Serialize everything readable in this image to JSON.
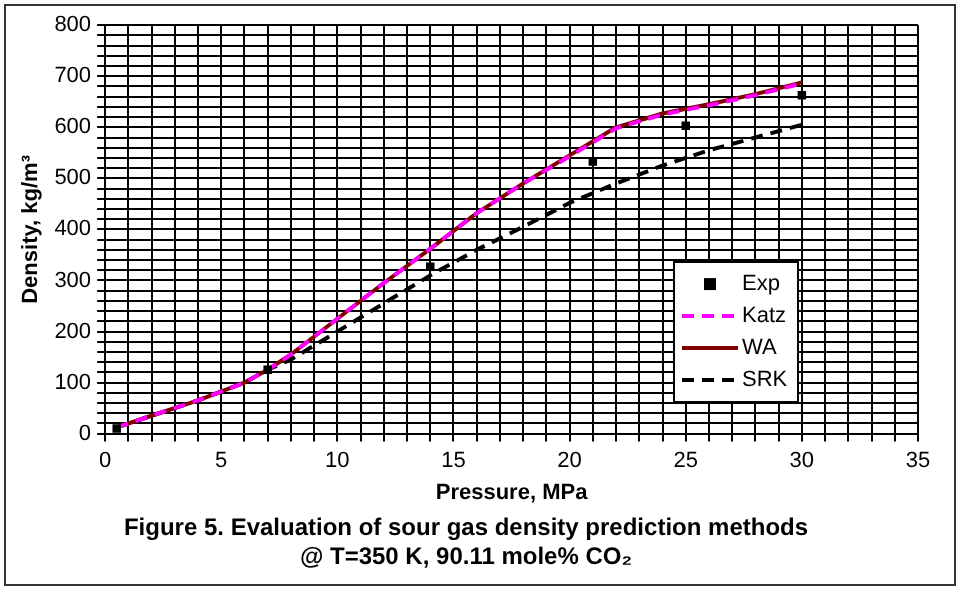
{
  "chart_data": {
    "type": "line",
    "title": "Figure 5. Evaluation of sour gas density prediction methods",
    "subtitle": "@ T=350 K, 90.11 mole% CO₂",
    "xlabel": "Pressure, MPa",
    "ylabel": "Density, kg/m³",
    "xlim": [
      0,
      35
    ],
    "ylim": [
      0,
      800
    ],
    "xticks": [
      0,
      {
        "value": 1,
        "label": null
      },
      {
        "value": 2,
        "label": null
      },
      {
        "value": 3,
        "label": null
      },
      {
        "value": 4,
        "label": null
      },
      5,
      {
        "value": 6,
        "label": null
      },
      {
        "value": 7,
        "label": null
      },
      {
        "value": 8,
        "label": null
      },
      {
        "value": 9,
        "label": null
      },
      10,
      {
        "value": 11,
        "label": null
      },
      {
        "value": 12,
        "label": null
      },
      {
        "value": 13,
        "label": null
      },
      {
        "value": 14,
        "label": null
      },
      15,
      {
        "value": 16,
        "label": null
      },
      {
        "value": 17,
        "label": null
      },
      {
        "value": 18,
        "label": null
      },
      {
        "value": 19,
        "label": null
      },
      20,
      {
        "value": 21,
        "label": null
      },
      {
        "value": 22,
        "label": null
      },
      {
        "value": 23,
        "label": null
      },
      {
        "value": 24,
        "label": null
      },
      25,
      {
        "value": 26,
        "label": null
      },
      {
        "value": 27,
        "label": null
      },
      {
        "value": 28,
        "label": null
      },
      {
        "value": 29,
        "label": null
      },
      30,
      {
        "value": 31,
        "label": null
      },
      {
        "value": 32,
        "label": null
      },
      {
        "value": 33,
        "label": null
      },
      {
        "value": 34,
        "label": null
      },
      35
    ],
    "yticks": [
      0,
      {
        "value": 20,
        "label": null
      },
      {
        "value": 40,
        "label": null
      },
      {
        "value": 60,
        "label": null
      },
      {
        "value": 80,
        "label": null
      },
      100,
      {
        "value": 120,
        "label": null
      },
      {
        "value": 140,
        "label": null
      },
      {
        "value": 160,
        "label": null
      },
      {
        "value": 180,
        "label": null
      },
      200,
      {
        "value": 220,
        "label": null
      },
      {
        "value": 240,
        "label": null
      },
      {
        "value": 260,
        "label": null
      },
      {
        "value": 280,
        "label": null
      },
      300,
      {
        "value": 320,
        "label": null
      },
      {
        "value": 340,
        "label": null
      },
      {
        "value": 360,
        "label": null
      },
      {
        "value": 380,
        "label": null
      },
      400,
      {
        "value": 420,
        "label": null
      },
      {
        "value": 440,
        "label": null
      },
      {
        "value": 460,
        "label": null
      },
      {
        "value": 480,
        "label": null
      },
      500,
      {
        "value": 520,
        "label": null
      },
      {
        "value": 540,
        "label": null
      },
      {
        "value": 560,
        "label": null
      },
      {
        "value": 580,
        "label": null
      },
      600,
      {
        "value": 620,
        "label": null
      },
      {
        "value": 640,
        "label": null
      },
      {
        "value": 660,
        "label": null
      },
      {
        "value": 680,
        "label": null
      },
      700,
      {
        "value": 720,
        "label": null
      },
      {
        "value": 740,
        "label": null
      },
      {
        "value": 760,
        "label": null
      },
      {
        "value": 780,
        "label": null
      },
      800
    ],
    "grid": true,
    "legend": "center right",
    "series": [
      {
        "name": "Exp",
        "type": "scatter",
        "color": "#000000",
        "marker": "square",
        "x": [
          0.5,
          7,
          14,
          21,
          25,
          30
        ],
        "values": [
          10,
          125,
          327,
          533,
          603,
          663
        ]
      },
      {
        "name": "Katz",
        "type": "line",
        "color": "#ff00ff",
        "line_style": "dashed",
        "marker": "none",
        "x": [
          0.5,
          2,
          4,
          6,
          7,
          8,
          10,
          12,
          14,
          16,
          18,
          20,
          22,
          24,
          26,
          28,
          30
        ],
        "values": [
          12,
          35,
          65,
          100,
          125,
          155,
          225,
          295,
          362,
          432,
          490,
          543,
          598,
          625,
          643,
          663,
          686
        ]
      },
      {
        "name": "WA",
        "type": "line",
        "color": "#800000",
        "line_style": "solid",
        "marker": "none",
        "x": [
          0.5,
          2,
          4,
          6,
          7,
          8,
          10,
          12,
          14,
          16,
          18,
          20,
          22,
          24,
          26,
          28,
          30
        ],
        "values": [
          12,
          35,
          65,
          100,
          125,
          155,
          225,
          295,
          362,
          432,
          490,
          545,
          600,
          627,
          645,
          665,
          688
        ]
      },
      {
        "name": "SRK",
        "type": "line",
        "color": "#000000",
        "line_style": "dashed",
        "marker": "none",
        "x": [
          0.5,
          2,
          4,
          6,
          7,
          8,
          10,
          12,
          14,
          16,
          18,
          20,
          22,
          24,
          26,
          28,
          30
        ],
        "values": [
          12,
          35,
          65,
          100,
          125,
          145,
          200,
          255,
          310,
          360,
          405,
          452,
          490,
          525,
          555,
          580,
          605
        ]
      }
    ]
  }
}
